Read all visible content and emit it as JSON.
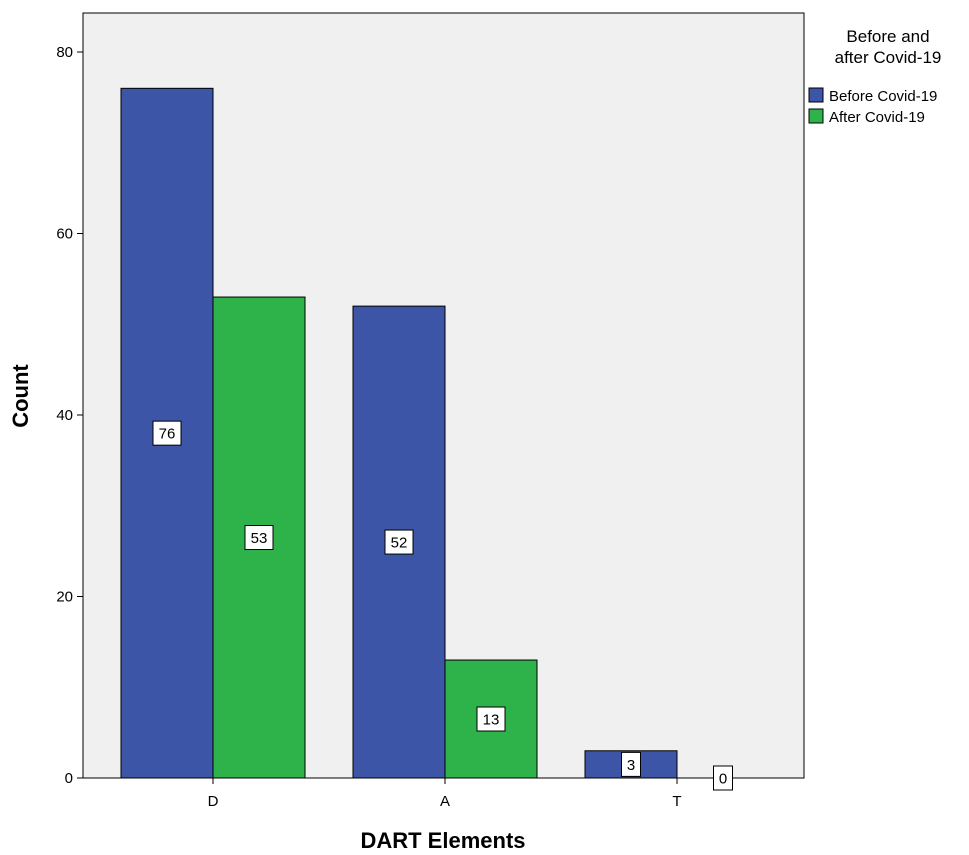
{
  "chart_data": {
    "type": "bar",
    "title": "",
    "xlabel": "DART Elements",
    "ylabel": "Count",
    "categories": [
      "D",
      "A",
      "T"
    ],
    "series": [
      {
        "name": "Before Covid-19",
        "values": [
          76,
          52,
          3
        ],
        "color": "#3c55a6"
      },
      {
        "name": "After Covid-19",
        "values": [
          53,
          13,
          0
        ],
        "color": "#2db34a"
      }
    ],
    "y_ticks": [
      0,
      20,
      40,
      60,
      80
    ],
    "ylim": [
      0,
      84.3
    ],
    "legend": {
      "title_lines": [
        "Before and",
        "after Covid-19"
      ],
      "position": "right"
    },
    "plot_background": "#f0f0f0",
    "grid": false
  }
}
